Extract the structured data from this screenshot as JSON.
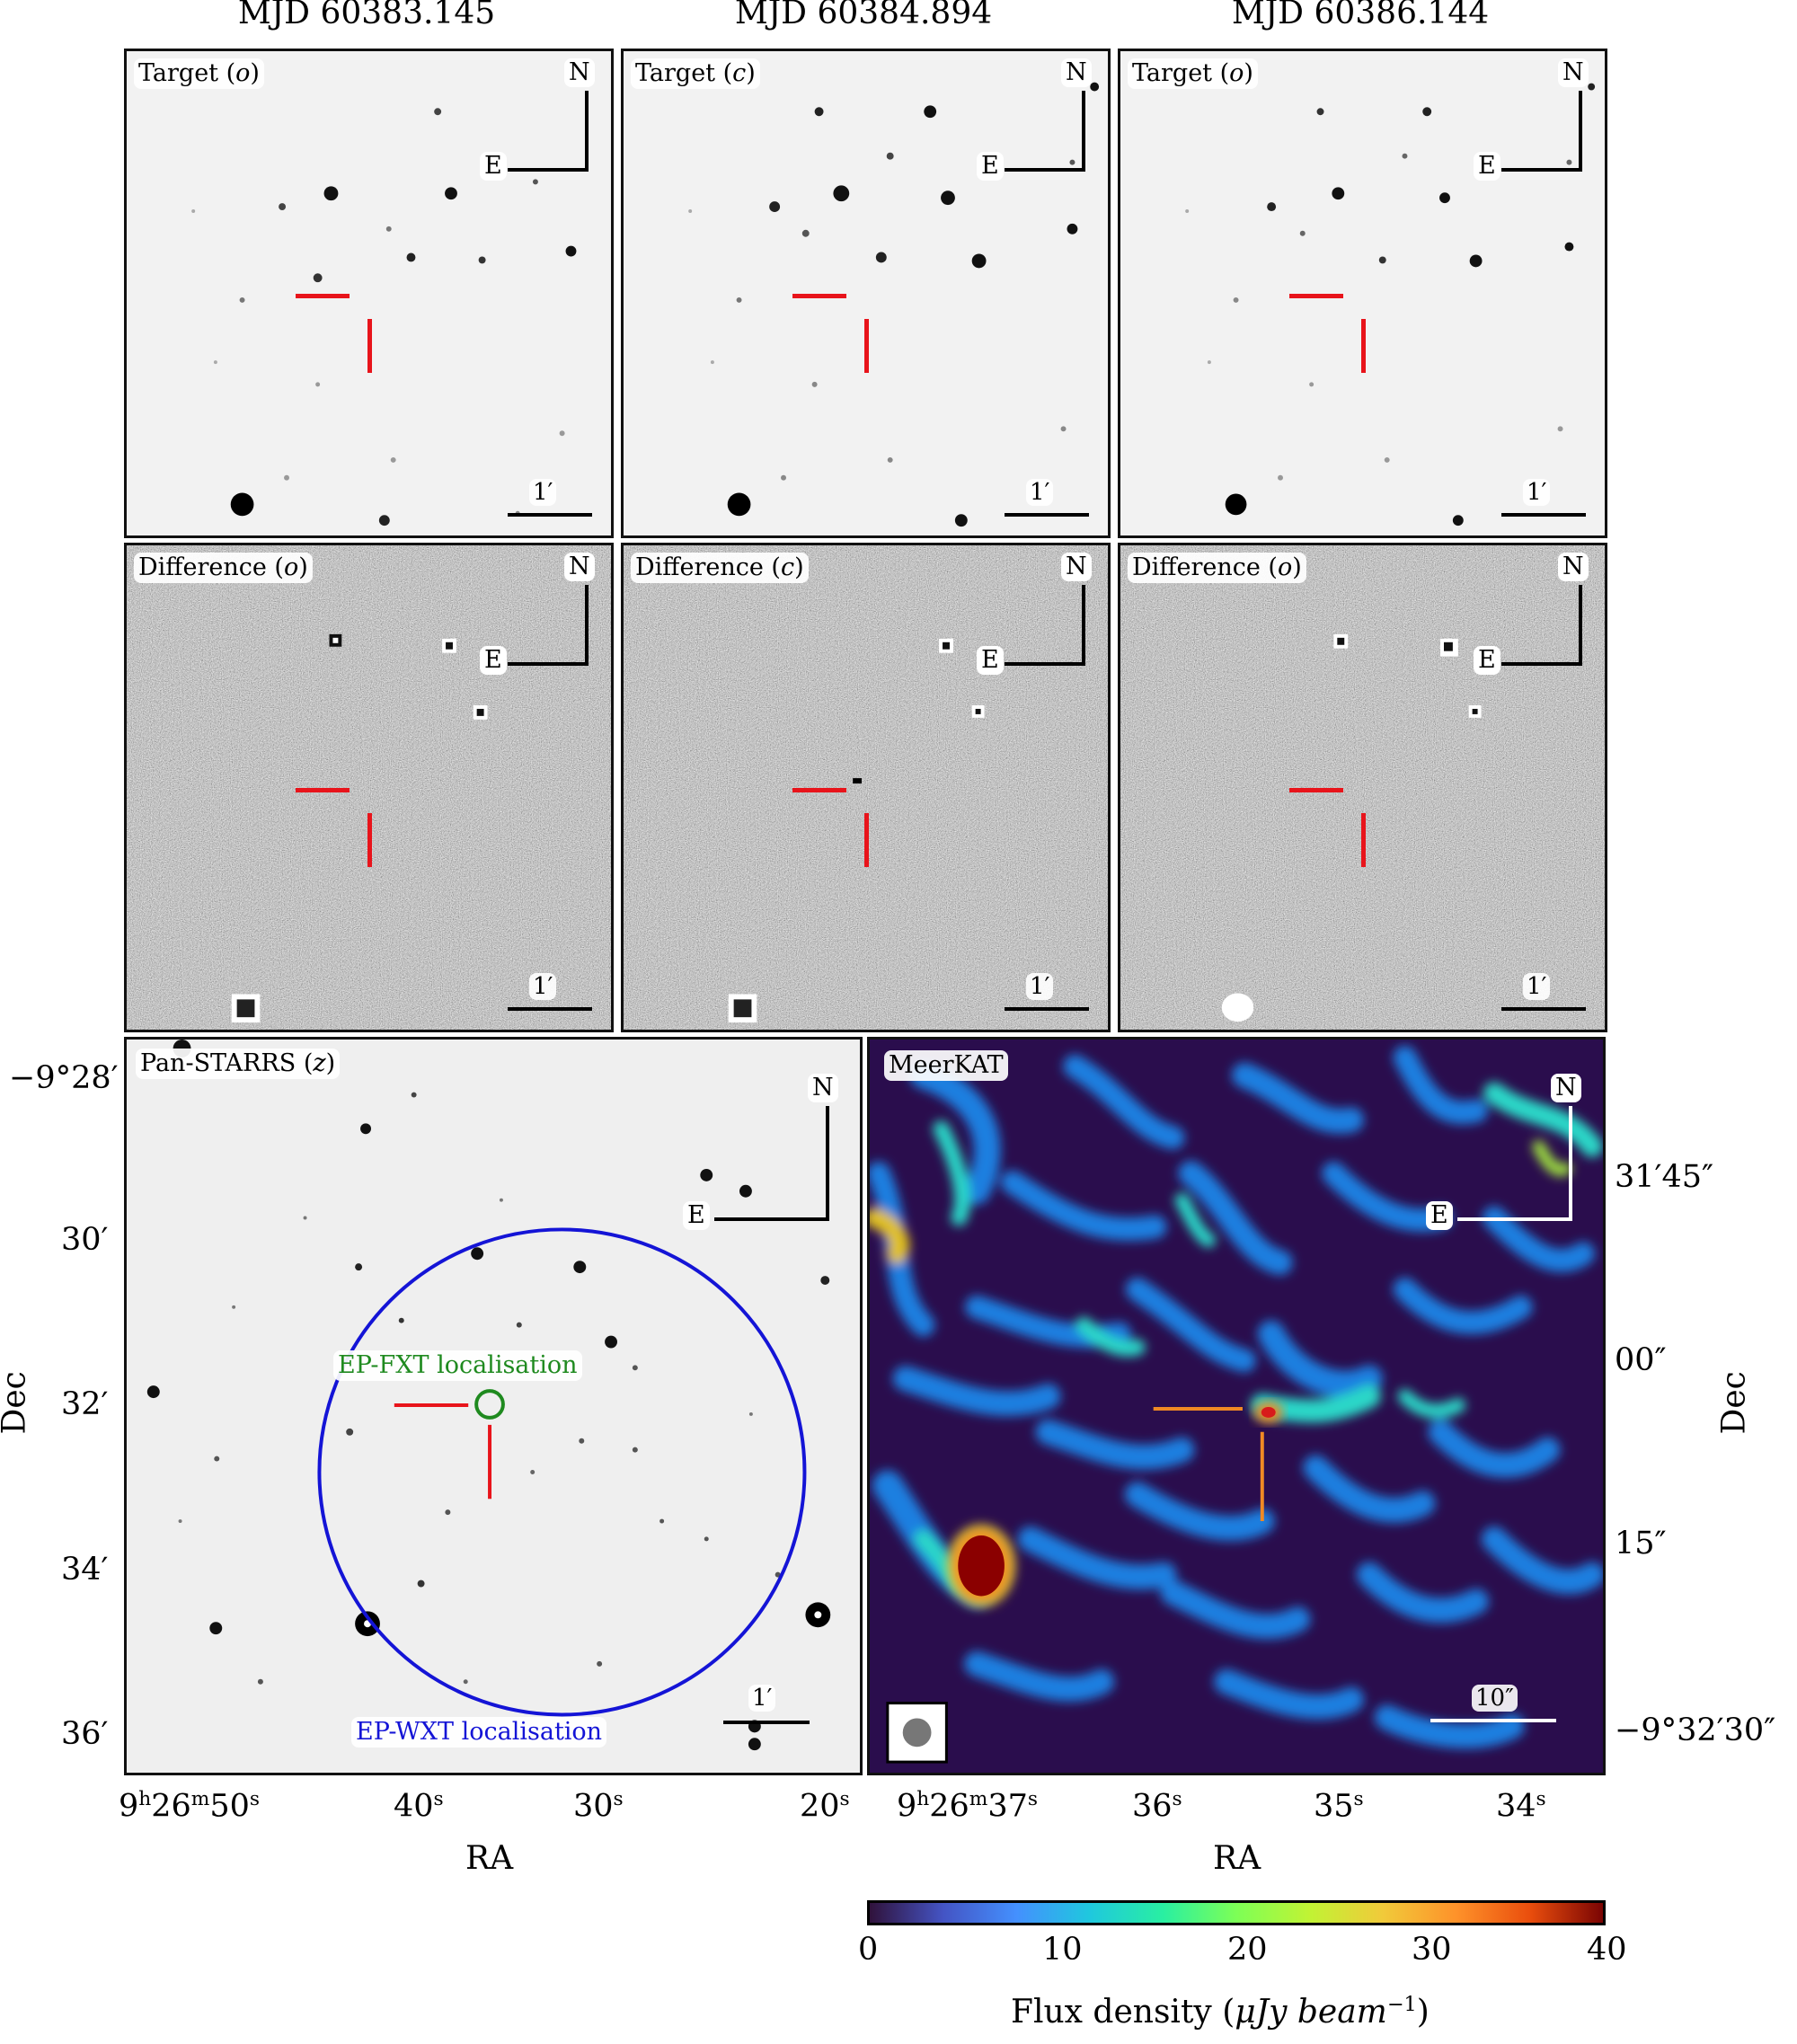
{
  "columns": [
    {
      "title": "MJD 60383.145",
      "target_label": "Target",
      "target_band": "o",
      "diff_label": "Difference",
      "diff_band": "o"
    },
    {
      "title": "MJD 60384.894",
      "target_label": "Target",
      "target_band": "c",
      "diff_label": "Difference",
      "diff_band": "c"
    },
    {
      "title": "MJD 60386.144",
      "target_label": "Target",
      "target_band": "o",
      "diff_label": "Difference",
      "diff_band": "o"
    }
  ],
  "compass": {
    "north": "N",
    "east": "E"
  },
  "scalebar_small": "1′",
  "panstarrs": {
    "label": "Pan-STARRS",
    "band": "z",
    "fxt_label": "EP-FXT localisation",
    "wxt_label": "EP-WXT localisation",
    "scalebar": "1′",
    "yticks": [
      "−9°28′",
      "30′",
      "32′",
      "34′",
      "36′"
    ],
    "xticks": [
      {
        "base": "9",
        "h": "h",
        "m_val": "26",
        "m": "m",
        "s_val": "50",
        "s": "s"
      },
      {
        "s_val": "40",
        "s": "s"
      },
      {
        "s_val": "30",
        "s": "s"
      },
      {
        "s_val": "20",
        "s": "s"
      }
    ],
    "xlabel": "RA",
    "ylabel": "Dec"
  },
  "meerkat": {
    "label": "MeerKAT",
    "scalebar": "10″",
    "yticks": [
      "31′45″",
      "00″",
      "15″",
      "−9°32′30″"
    ],
    "xticks": [
      {
        "base": "9",
        "h": "h",
        "m_val": "26",
        "m": "m",
        "s_val": "37",
        "s": "s"
      },
      {
        "s_val": "36",
        "s": "s"
      },
      {
        "s_val": "35",
        "s": "s"
      },
      {
        "s_val": "34",
        "s": "s"
      }
    ],
    "xlabel": "RA",
    "ylabel": "Dec"
  },
  "colorbar": {
    "ticks": [
      "0",
      "10",
      "20",
      "30",
      "40"
    ],
    "range": [
      0,
      40
    ],
    "label_main": "Flux density (",
    "label_unit": "μJy beam",
    "label_exp": "−1",
    "label_close": ")"
  },
  "colors": {
    "marker_red": "#e8141b",
    "marker_orange": "#f08a24",
    "fxt_green": "#1f8a1f",
    "wxt_blue": "#1414d6",
    "meerkat_bg": "#2a0d4d"
  }
}
